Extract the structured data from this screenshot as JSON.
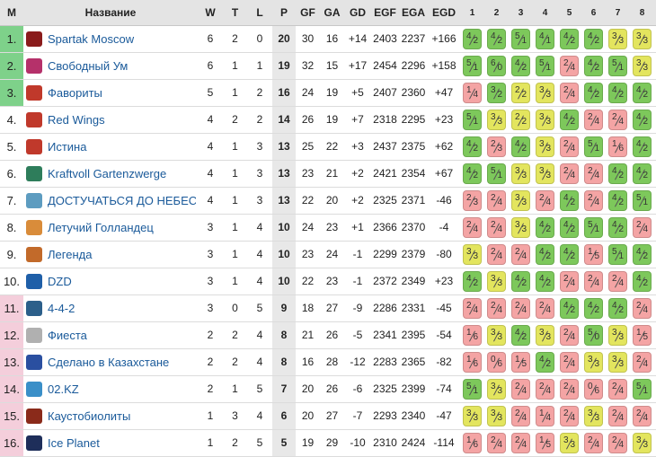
{
  "columns": [
    "M",
    "Название",
    "W",
    "T",
    "L",
    "P",
    "GF",
    "GA",
    "GD",
    "EGF",
    "EGA",
    "EGD",
    "1",
    "2",
    "3",
    "4",
    "5",
    "6",
    "7",
    "8"
  ],
  "colors": {
    "win": "#7dc85b",
    "draw": "#e3e55e",
    "loss": "#f4a4a4",
    "zone_top": "#7ed18a",
    "zone_bottom": "#f4cedb"
  },
  "rows": [
    {
      "pos": "1.",
      "zone": "green",
      "logo": "#8a1c1c",
      "name": "Spartak Moscow",
      "w": "6",
      "t": "2",
      "l": "0",
      "p": "20",
      "gf": "30",
      "ga": "16",
      "gd": "+14",
      "egf": "2403",
      "ega": "2237",
      "egd": "+166",
      "cells": [
        [
          "4",
          "2"
        ],
        [
          "4",
          "2"
        ],
        [
          "5",
          "1"
        ],
        [
          "4",
          "1"
        ],
        [
          "4",
          "2"
        ],
        [
          "4",
          "2"
        ],
        [
          "3",
          "3"
        ],
        [
          "3",
          "3"
        ]
      ]
    },
    {
      "pos": "2.",
      "zone": "green",
      "logo": "#b5316a",
      "name": "Свободный Ум",
      "w": "6",
      "t": "1",
      "l": "1",
      "p": "19",
      "gf": "32",
      "ga": "15",
      "gd": "+17",
      "egf": "2454",
      "ega": "2296",
      "egd": "+158",
      "cells": [
        [
          "5",
          "1"
        ],
        [
          "6",
          "0"
        ],
        [
          "4",
          "2"
        ],
        [
          "5",
          "1"
        ],
        [
          "2",
          "4"
        ],
        [
          "4",
          "2"
        ],
        [
          "5",
          "1"
        ],
        [
          "3",
          "3"
        ]
      ]
    },
    {
      "pos": "3.",
      "zone": "green",
      "logo": "#c0392b",
      "name": "Фавориты",
      "w": "5",
      "t": "1",
      "l": "2",
      "p": "16",
      "gf": "24",
      "ga": "19",
      "gd": "+5",
      "egf": "2407",
      "ega": "2360",
      "egd": "+47",
      "cells": [
        [
          "1",
          "4"
        ],
        [
          "3",
          "2"
        ],
        [
          "2",
          "2"
        ],
        [
          "3",
          "3"
        ],
        [
          "2",
          "4"
        ],
        [
          "4",
          "2"
        ],
        [
          "4",
          "2"
        ],
        [
          "4",
          "2"
        ]
      ]
    },
    {
      "pos": "4.",
      "zone": "white",
      "logo": "#c0392b",
      "name": "Red Wings",
      "w": "4",
      "t": "2",
      "l": "2",
      "p": "14",
      "gf": "26",
      "ga": "19",
      "gd": "+7",
      "egf": "2318",
      "ega": "2295",
      "egd": "+23",
      "cells": [
        [
          "5",
          "1"
        ],
        [
          "3",
          "3"
        ],
        [
          "2",
          "2"
        ],
        [
          "3",
          "3"
        ],
        [
          "4",
          "2"
        ],
        [
          "2",
          "4"
        ],
        [
          "2",
          "4"
        ],
        [
          "4",
          "2"
        ]
      ]
    },
    {
      "pos": "5.",
      "zone": "white",
      "logo": "#c0392b",
      "name": "Истина",
      "w": "4",
      "t": "1",
      "l": "3",
      "p": "13",
      "gf": "25",
      "ga": "22",
      "gd": "+3",
      "egf": "2437",
      "ega": "2375",
      "egd": "+62",
      "cells": [
        [
          "4",
          "2"
        ],
        [
          "2",
          "3"
        ],
        [
          "4",
          "2"
        ],
        [
          "3",
          "3"
        ],
        [
          "2",
          "4"
        ],
        [
          "5",
          "1"
        ],
        [
          "1",
          "6"
        ],
        [
          "4",
          "2"
        ]
      ]
    },
    {
      "pos": "6.",
      "zone": "white",
      "logo": "#2e7d5b",
      "name": "Kraftvoll Gartenzwerge",
      "w": "4",
      "t": "1",
      "l": "3",
      "p": "13",
      "gf": "23",
      "ga": "21",
      "gd": "+2",
      "egf": "2421",
      "ega": "2354",
      "egd": "+67",
      "cells": [
        [
          "4",
          "2"
        ],
        [
          "5",
          "1"
        ],
        [
          "3",
          "3"
        ],
        [
          "3",
          "3"
        ],
        [
          "2",
          "4"
        ],
        [
          "2",
          "4"
        ],
        [
          "4",
          "2"
        ],
        [
          "4",
          "2"
        ]
      ]
    },
    {
      "pos": "7.",
      "zone": "white",
      "logo": "#5d9cc0",
      "name": "ДОСТУЧАТЬСЯ ДО НЕБЕС",
      "w": "4",
      "t": "1",
      "l": "3",
      "p": "13",
      "gf": "22",
      "ga": "20",
      "gd": "+2",
      "egf": "2325",
      "ega": "2371",
      "egd": "-46",
      "cells": [
        [
          "2",
          "3"
        ],
        [
          "2",
          "4"
        ],
        [
          "3",
          "3"
        ],
        [
          "2",
          "4"
        ],
        [
          "4",
          "2"
        ],
        [
          "2",
          "4"
        ],
        [
          "4",
          "2"
        ],
        [
          "5",
          "1"
        ]
      ]
    },
    {
      "pos": "8.",
      "zone": "white",
      "logo": "#d98c3a",
      "name": "Летучий Голландец",
      "w": "3",
      "t": "1",
      "l": "4",
      "p": "10",
      "gf": "24",
      "ga": "23",
      "gd": "+1",
      "egf": "2366",
      "ega": "2370",
      "egd": "-4",
      "cells": [
        [
          "2",
          "4"
        ],
        [
          "2",
          "4"
        ],
        [
          "3",
          "3"
        ],
        [
          "4",
          "2"
        ],
        [
          "4",
          "2"
        ],
        [
          "5",
          "1"
        ],
        [
          "4",
          "2"
        ],
        [
          "2",
          "4"
        ]
      ]
    },
    {
      "pos": "9.",
      "zone": "white",
      "logo": "#c26a2a",
      "name": "Легенда",
      "w": "3",
      "t": "1",
      "l": "4",
      "p": "10",
      "gf": "23",
      "ga": "24",
      "gd": "-1",
      "egf": "2299",
      "ega": "2379",
      "egd": "-80",
      "cells": [
        [
          "3",
          "3"
        ],
        [
          "2",
          "4"
        ],
        [
          "2",
          "4"
        ],
        [
          "4",
          "2"
        ],
        [
          "4",
          "2"
        ],
        [
          "1",
          "5"
        ],
        [
          "5",
          "1"
        ],
        [
          "4",
          "2"
        ]
      ]
    },
    {
      "pos": "10.",
      "zone": "white",
      "logo": "#1f5fa8",
      "name": "DZD",
      "w": "3",
      "t": "1",
      "l": "4",
      "p": "10",
      "gf": "22",
      "ga": "23",
      "gd": "-1",
      "egf": "2372",
      "ega": "2349",
      "egd": "+23",
      "cells": [
        [
          "4",
          "2"
        ],
        [
          "3",
          "3"
        ],
        [
          "4",
          "2"
        ],
        [
          "4",
          "2"
        ],
        [
          "2",
          "4"
        ],
        [
          "2",
          "4"
        ],
        [
          "2",
          "4"
        ],
        [
          "4",
          "2"
        ]
      ]
    },
    {
      "pos": "11.",
      "zone": "pink",
      "logo": "#2c5f8a",
      "name": "4-4-2",
      "w": "3",
      "t": "0",
      "l": "5",
      "p": "9",
      "gf": "18",
      "ga": "27",
      "gd": "-9",
      "egf": "2286",
      "ega": "2331",
      "egd": "-45",
      "cells": [
        [
          "2",
          "4"
        ],
        [
          "2",
          "4"
        ],
        [
          "2",
          "4"
        ],
        [
          "2",
          "4"
        ],
        [
          "4",
          "2"
        ],
        [
          "4",
          "2"
        ],
        [
          "4",
          "2"
        ],
        [
          "2",
          "4"
        ]
      ]
    },
    {
      "pos": "12.",
      "zone": "pink",
      "logo": "#b0b0b0",
      "name": "Фиеста",
      "w": "2",
      "t": "2",
      "l": "4",
      "p": "8",
      "gf": "21",
      "ga": "26",
      "gd": "-5",
      "egf": "2341",
      "ega": "2395",
      "egd": "-54",
      "cells": [
        [
          "1",
          "6"
        ],
        [
          "3",
          "3"
        ],
        [
          "4",
          "2"
        ],
        [
          "3",
          "3"
        ],
        [
          "2",
          "4"
        ],
        [
          "5",
          "0"
        ],
        [
          "3",
          "3"
        ],
        [
          "1",
          "5"
        ]
      ]
    },
    {
      "pos": "13.",
      "zone": "pink",
      "logo": "#2a4fa0",
      "name": "Сделано в Казахстане",
      "w": "2",
      "t": "2",
      "l": "4",
      "p": "8",
      "gf": "16",
      "ga": "28",
      "gd": "-12",
      "egf": "2283",
      "ega": "2365",
      "egd": "-82",
      "cells": [
        [
          "1",
          "6"
        ],
        [
          "0",
          "6"
        ],
        [
          "1",
          "5"
        ],
        [
          "4",
          "2"
        ],
        [
          "2",
          "4"
        ],
        [
          "3",
          "3"
        ],
        [
          "3",
          "3"
        ],
        [
          "2",
          "4"
        ]
      ]
    },
    {
      "pos": "14.",
      "zone": "pink",
      "logo": "#3a8fc8",
      "name": "02.KZ",
      "w": "2",
      "t": "1",
      "l": "5",
      "p": "7",
      "gf": "20",
      "ga": "26",
      "gd": "-6",
      "egf": "2325",
      "ega": "2399",
      "egd": "-74",
      "cells": [
        [
          "5",
          "1"
        ],
        [
          "3",
          "3"
        ],
        [
          "2",
          "4"
        ],
        [
          "2",
          "4"
        ],
        [
          "2",
          "4"
        ],
        [
          "0",
          "6"
        ],
        [
          "2",
          "4"
        ],
        [
          "5",
          "1"
        ]
      ]
    },
    {
      "pos": "15.",
      "zone": "pink",
      "logo": "#8a2a1a",
      "name": "Каустобиолиты",
      "w": "1",
      "t": "3",
      "l": "4",
      "p": "6",
      "gf": "20",
      "ga": "27",
      "gd": "-7",
      "egf": "2293",
      "ega": "2340",
      "egd": "-47",
      "cells": [
        [
          "3",
          "3"
        ],
        [
          "3",
          "3"
        ],
        [
          "2",
          "4"
        ],
        [
          "1",
          "4"
        ],
        [
          "2",
          "4"
        ],
        [
          "3",
          "3"
        ],
        [
          "2",
          "4"
        ],
        [
          "2",
          "4"
        ]
      ]
    },
    {
      "pos": "16.",
      "zone": "pink",
      "logo": "#1e2e5a",
      "name": "Ice Planet",
      "w": "1",
      "t": "2",
      "l": "5",
      "p": "5",
      "gf": "19",
      "ga": "29",
      "gd": "-10",
      "egf": "2310",
      "ega": "2424",
      "egd": "-114",
      "cells": [
        [
          "1",
          "6"
        ],
        [
          "2",
          "4"
        ],
        [
          "2",
          "4"
        ],
        [
          "1",
          "5"
        ],
        [
          "3",
          "3"
        ],
        [
          "2",
          "4"
        ],
        [
          "2",
          "4"
        ],
        [
          "3",
          "3"
        ]
      ]
    }
  ]
}
